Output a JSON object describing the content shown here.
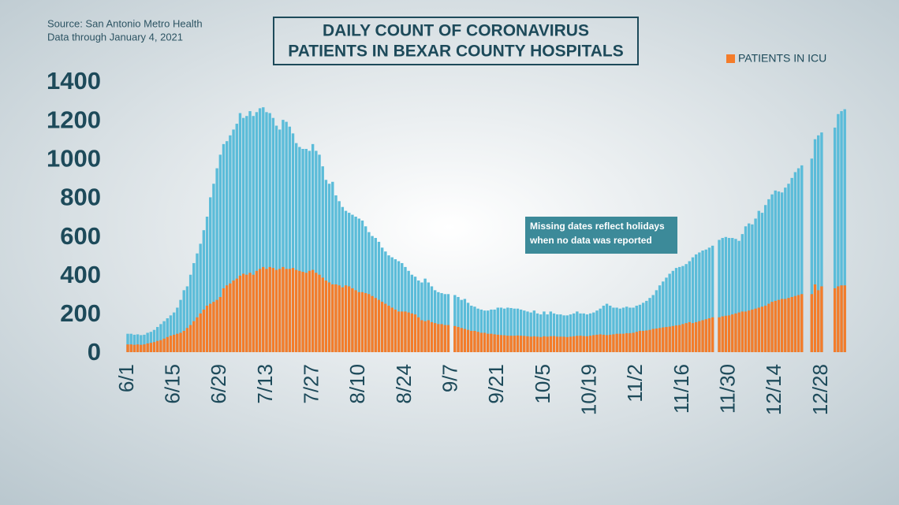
{
  "chart_data": {
    "type": "bar",
    "title": [
      "DAILY COUNT OF CORONAVIRUS",
      "PATIENTS IN BEXAR COUNTY HOSPITALS"
    ],
    "source": "Source: San Antonio Metro Health",
    "data_note": "Data through January 4, 2021",
    "annotation": [
      "Missing dates reflect holidays",
      "when no data was reported"
    ],
    "categories": [
      "6/1",
      null,
      null,
      null,
      null,
      null,
      null,
      null,
      null,
      null,
      null,
      null,
      null,
      null,
      "6/15",
      null,
      null,
      null,
      null,
      null,
      null,
      null,
      null,
      null,
      null,
      null,
      null,
      null,
      "6/29",
      null,
      null,
      null,
      null,
      null,
      null,
      null,
      null,
      null,
      null,
      null,
      null,
      null,
      "7/13",
      null,
      null,
      null,
      null,
      null,
      null,
      null,
      null,
      null,
      null,
      null,
      null,
      null,
      "7/27",
      null,
      null,
      null,
      null,
      null,
      null,
      null,
      null,
      null,
      null,
      null,
      null,
      null,
      "8/10",
      null,
      null,
      null,
      null,
      null,
      null,
      null,
      null,
      null,
      null,
      null,
      null,
      null,
      "8/24",
      null,
      null,
      null,
      null,
      null,
      null,
      null,
      null,
      null,
      null,
      null,
      null,
      null,
      "9/7",
      null,
      null,
      null,
      null,
      null,
      null,
      null,
      null,
      null,
      null,
      null,
      null,
      null,
      "9/21",
      null,
      null,
      null,
      null,
      null,
      null,
      null,
      null,
      null,
      null,
      null,
      null,
      null,
      "10/5",
      null,
      null,
      null,
      null,
      null,
      null,
      null,
      null,
      null,
      null,
      null,
      null,
      null,
      "10/19",
      null,
      null,
      null,
      null,
      null,
      null,
      null,
      null,
      null,
      null,
      null,
      null,
      null,
      "11/2",
      null,
      null,
      null,
      null,
      null,
      null,
      null,
      null,
      null,
      null,
      null,
      null,
      null,
      "11/16",
      null,
      null,
      null,
      null,
      null,
      null,
      null,
      null,
      null,
      null,
      null,
      null,
      null,
      "11/30",
      null,
      null,
      null,
      null,
      null,
      null,
      null,
      null,
      null,
      null,
      null,
      null,
      null,
      "12/14",
      null,
      null,
      null,
      null,
      null,
      null,
      null,
      null,
      null,
      null,
      null,
      null,
      null,
      "12/28",
      null,
      null,
      null,
      null,
      null,
      null,
      null
    ],
    "series": [
      {
        "color": "#5bbcd9",
        "values": [
          95,
          95,
          90,
          92,
          88,
          90,
          100,
          105,
          115,
          130,
          145,
          160,
          175,
          190,
          205,
          230,
          270,
          320,
          340,
          400,
          460,
          510,
          560,
          630,
          700,
          800,
          870,
          950,
          1020,
          1075,
          1090,
          1120,
          1150,
          1180,
          1235,
          1210,
          1220,
          1245,
          1220,
          1240,
          1260,
          1265,
          1240,
          1235,
          1210,
          1170,
          1150,
          1200,
          1190,
          1165,
          1130,
          1080,
          1060,
          1050,
          1050,
          1040,
          1075,
          1040,
          1020,
          960,
          890,
          870,
          880,
          810,
          780,
          750,
          730,
          720,
          710,
          700,
          690,
          680,
          650,
          620,
          600,
          590,
          570,
          540,
          520,
          500,
          490,
          480,
          470,
          460,
          440,
          420,
          400,
          390,
          370,
          360,
          380,
          360,
          340,
          320,
          310,
          305,
          300,
          300,
          null,
          295,
          285,
          270,
          275,
          255,
          240,
          235,
          225,
          220,
          215,
          215,
          220,
          220,
          230,
          230,
          225,
          230,
          228,
          225,
          225,
          220,
          215,
          210,
          205,
          215,
          200,
          195,
          210,
          195,
          210,
          200,
          195,
          195,
          190,
          190,
          195,
          200,
          210,
          200,
          200,
          195,
          200,
          205,
          215,
          225,
          240,
          250,
          240,
          230,
          230,
          225,
          230,
          235,
          230,
          230,
          240,
          245,
          255,
          265,
          280,
          295,
          320,
          345,
          365,
          385,
          405,
          420,
          435,
          440,
          445,
          455,
          470,
          490,
          505,
          515,
          525,
          530,
          540,
          550,
          null,
          580,
          590,
          595,
          590,
          590,
          585,
          575,
          610,
          650,
          665,
          660,
          690,
          730,
          720,
          760,
          790,
          815,
          835,
          830,
          825,
          850,
          870,
          900,
          930,
          950,
          965,
          null,
          null,
          1000,
          1100,
          1120,
          1135,
          null,
          null,
          null,
          1160,
          1230,
          1245,
          1255
        ]
      },
      {
        "name": "PATIENTS IN ICU",
        "color": "#f47c2a",
        "values": [
          40,
          40,
          38,
          40,
          38,
          40,
          45,
          48,
          52,
          58,
          62,
          70,
          78,
          85,
          90,
          95,
          100,
          110,
          125,
          140,
          160,
          180,
          200,
          220,
          240,
          250,
          260,
          270,
          285,
          330,
          345,
          355,
          370,
          380,
          395,
          405,
          400,
          410,
          400,
          420,
          430,
          440,
          430,
          440,
          435,
          425,
          430,
          440,
          430,
          430,
          435,
          425,
          420,
          415,
          410,
          420,
          425,
          410,
          400,
          385,
          370,
          360,
          350,
          350,
          345,
          335,
          345,
          340,
          330,
          320,
          310,
          310,
          305,
          300,
          290,
          280,
          270,
          260,
          250,
          240,
          230,
          220,
          210,
          210,
          210,
          205,
          200,
          195,
          180,
          165,
          160,
          165,
          155,
          150,
          145,
          145,
          140,
          140,
          null,
          135,
          130,
          125,
          120,
          115,
          110,
          110,
          105,
          100,
          100,
          95,
          95,
          92,
          90,
          88,
          87,
          85,
          85,
          85,
          86,
          85,
          84,
          82,
          80,
          82,
          80,
          78,
          82,
          80,
          82,
          83,
          80,
          80,
          80,
          78,
          80,
          82,
          84,
          85,
          83,
          82,
          85,
          88,
          90,
          92,
          90,
          88,
          90,
          92,
          95,
          95,
          95,
          98,
          98,
          100,
          105,
          110,
          110,
          112,
          115,
          120,
          122,
          125,
          128,
          130,
          132,
          135,
          138,
          140,
          145,
          150,
          155,
          150,
          155,
          160,
          165,
          170,
          175,
          180,
          null,
          180,
          185,
          188,
          190,
          195,
          200,
          205,
          210,
          210,
          215,
          220,
          225,
          230,
          235,
          240,
          250,
          260,
          265,
          270,
          275,
          275,
          280,
          285,
          290,
          295,
          300,
          null,
          null,
          300,
          350,
          320,
          340,
          null,
          null,
          null,
          330,
          340,
          345,
          345
        ]
      }
    ],
    "ylim": [
      0,
      1400
    ],
    "yticks": [
      0,
      200,
      400,
      600,
      800,
      1000,
      1200,
      1400
    ],
    "grid": false
  }
}
